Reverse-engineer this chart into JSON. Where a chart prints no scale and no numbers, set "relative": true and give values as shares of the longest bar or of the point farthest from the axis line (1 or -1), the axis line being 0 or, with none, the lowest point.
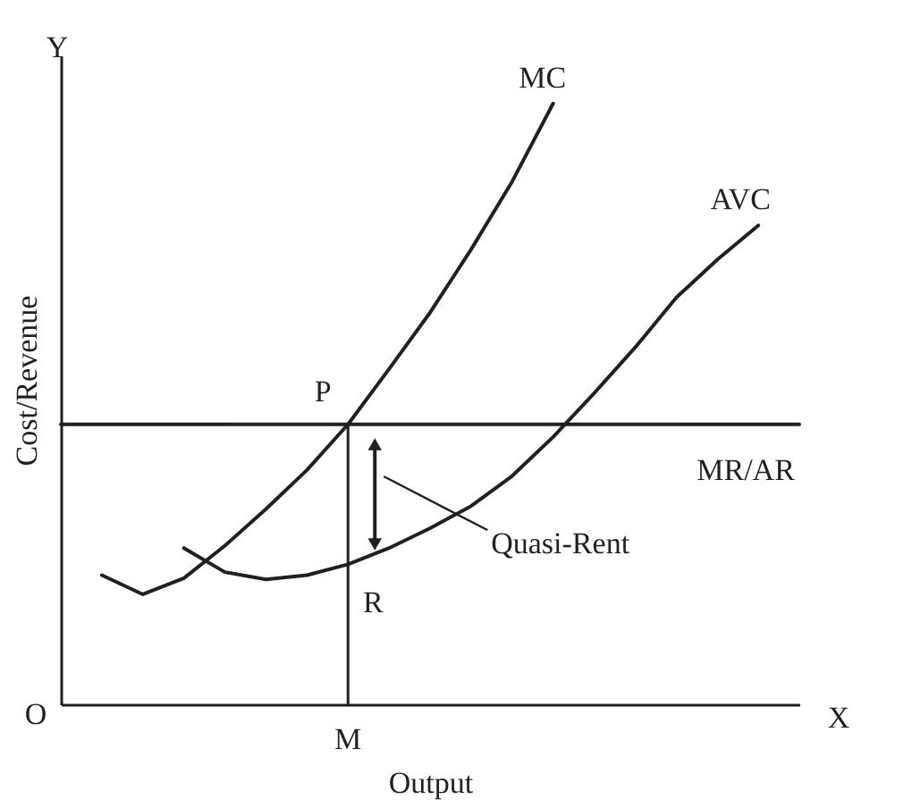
{
  "chart_data": {
    "type": "line",
    "relative": true,
    "xlabel": "Output",
    "ylabel": "Cost/Revenue",
    "grid": false,
    "legend": false,
    "categories": [
      null,
      null,
      null,
      null,
      null,
      null,
      null,
      null,
      null,
      null,
      null,
      null,
      null,
      null,
      null,
      null,
      null,
      null,
      null
    ],
    "series": [
      {
        "name": "MC",
        "color": "#231f20",
        "values": [
          null,
          0.215,
          0.183,
          0.21,
          0.264,
          0.325,
          0.39,
          0.466,
          0.558,
          0.652,
          0.757,
          0.87,
          1,
          null,
          null,
          null,
          null,
          null,
          null
        ]
      },
      {
        "name": "AVC",
        "color": "#231f20",
        "values": [
          null,
          null,
          null,
          0.26,
          0.22,
          0.208,
          0.215,
          0.233,
          0.26,
          0.293,
          0.33,
          0.38,
          0.445,
          0.518,
          0.594,
          0.677,
          0.74,
          0.797,
          null
        ]
      },
      {
        "name": "MR/AR",
        "color": "#231f20",
        "values": [
          0.466,
          0.466,
          0.466,
          0.466,
          0.466,
          0.466,
          0.466,
          0.466,
          0.466,
          0.466,
          0.466,
          0.466,
          0.466,
          0.466,
          0.466,
          0.466,
          0.466,
          0.466,
          0.466
        ]
      }
    ],
    "annotations": [
      "Y",
      "X",
      "O",
      "P",
      "R",
      "M",
      "Quasi-Rent"
    ]
  }
}
